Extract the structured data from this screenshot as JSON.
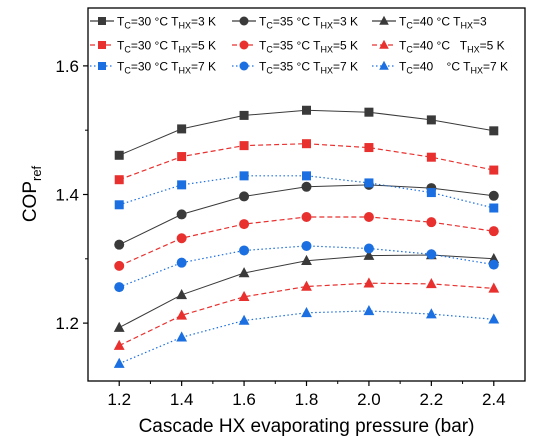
{
  "chart_data": {
    "type": "line",
    "xlabel": "Cascade HX evaporating pressure (bar)",
    "ylabel": {
      "main": "COP",
      "sub": "ref"
    },
    "xlim": [
      1.1,
      2.5
    ],
    "ylim": [
      1.11,
      1.69
    ],
    "x": [
      1.2,
      1.4,
      1.6,
      1.8,
      2.0,
      2.2,
      2.4
    ],
    "x_ticks": [
      "1.2",
      "1.4",
      "1.6",
      "1.8",
      "2.0",
      "2.2",
      "2.4"
    ],
    "y_ticks": [
      {
        "value": 1.2,
        "label": "1.2"
      },
      {
        "value": 1.4,
        "label": "1.4"
      },
      {
        "value": 1.6,
        "label": "1.6"
      }
    ],
    "grid": false,
    "legend_position": "top",
    "series": [
      {
        "legend": [
          "T",
          "C",
          "=30 °C ",
          "T",
          "HX",
          "=3 K"
        ],
        "marker": "square",
        "color": "#3a3a3a",
        "dash": "solid",
        "values": [
          1.461,
          1.502,
          1.523,
          1.531,
          1.528,
          1.516,
          1.499
        ]
      },
      {
        "legend": [
          "T",
          "C",
          "=35 °C ",
          "T",
          "HX",
          "=3 K"
        ],
        "marker": "circle",
        "color": "#3a3a3a",
        "dash": "solid",
        "values": [
          1.322,
          1.369,
          1.397,
          1.412,
          1.415,
          1.41,
          1.398
        ]
      },
      {
        "legend": [
          "T",
          "C",
          "=40 °C ",
          "T",
          "HX",
          "=3"
        ],
        "marker": "triangle",
        "color": "#3a3a3a",
        "dash": "solid",
        "values": [
          1.193,
          1.244,
          1.278,
          1.297,
          1.305,
          1.306,
          1.3
        ]
      },
      {
        "legend": [
          "T",
          "C",
          "=30 °C ",
          "T",
          "HX",
          "=5 K"
        ],
        "marker": "square",
        "color": "#e8312f",
        "dash": "dashed",
        "values": [
          1.423,
          1.459,
          1.476,
          1.479,
          1.473,
          1.458,
          1.438
        ]
      },
      {
        "legend": [
          "T",
          "C",
          "=35 °C ",
          "T",
          "HX",
          "=5 K"
        ],
        "marker": "circle",
        "color": "#e8312f",
        "dash": "dashed",
        "values": [
          1.289,
          1.332,
          1.354,
          1.365,
          1.365,
          1.357,
          1.343
        ]
      },
      {
        "legend": [
          "T",
          "C",
          "=40 °C   ",
          "T",
          "HX",
          "=5 K"
        ],
        "marker": "triangle",
        "color": "#e8312f",
        "dash": "dashed",
        "values": [
          1.165,
          1.212,
          1.241,
          1.257,
          1.262,
          1.261,
          1.254
        ]
      },
      {
        "legend": [
          "T",
          "C",
          "=30 °C ",
          "T",
          "HX",
          "=7 K"
        ],
        "marker": "square",
        "color": "#1c6fe0",
        "dash": "dotted",
        "values": [
          1.384,
          1.415,
          1.429,
          1.429,
          1.418,
          1.403,
          1.379
        ]
      },
      {
        "legend": [
          "T",
          "C",
          "=35 °C ",
          "T",
          "HX",
          "=7 K"
        ],
        "marker": "circle",
        "color": "#1c6fe0",
        "dash": "dotted",
        "values": [
          1.256,
          1.294,
          1.313,
          1.32,
          1.316,
          1.307,
          1.291
        ]
      },
      {
        "legend": [
          "T",
          "C",
          "=40    °C ",
          "T",
          "HX",
          "=7 K"
        ],
        "marker": "triangle",
        "color": "#1c6fe0",
        "dash": "dotted",
        "values": [
          1.137,
          1.178,
          1.204,
          1.216,
          1.219,
          1.214,
          1.206
        ]
      }
    ]
  }
}
